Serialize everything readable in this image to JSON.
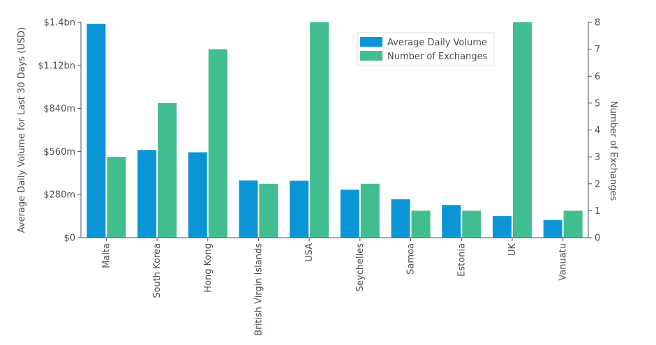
{
  "chart_data": {
    "type": "bar",
    "categories": [
      "Malta",
      "South Korea",
      "Hong Kong",
      "British Virgin Islands",
      "USA",
      "Seychelles",
      "Samoa",
      "Estonia",
      "UK",
      "Vanuatu"
    ],
    "series": [
      {
        "name": "Average Daily Volume",
        "axis": "left",
        "color": "#0a95d7",
        "values": [
          1390,
          570,
          555,
          372,
          370,
          312,
          250,
          212,
          140,
          115
        ]
      },
      {
        "name": "Number of Exchanges",
        "axis": "right",
        "color": "#42bd8f",
        "values": [
          3,
          5,
          7,
          2,
          8,
          2,
          1,
          1,
          8,
          1
        ]
      }
    ],
    "ylabel": "Average Daily Volume for Last 30 Days (USD)",
    "y2label": "Number of Exchanges",
    "ylim": [
      0,
      1400
    ],
    "y2lim": [
      0,
      8
    ],
    "yticks": [
      0,
      280,
      560,
      840,
      1120,
      1400
    ],
    "ytick_labels": [
      "$0",
      "$280m",
      "$560m",
      "$840m",
      "$1.12bn",
      "$1.4bn"
    ],
    "y2ticks": [
      0,
      1,
      2,
      3,
      4,
      5,
      6,
      7,
      8
    ],
    "y2tick_labels": [
      "0",
      "1",
      "2",
      "3",
      "4",
      "5",
      "6",
      "7",
      "8"
    ],
    "legend_position": "top-center",
    "grid": false
  }
}
